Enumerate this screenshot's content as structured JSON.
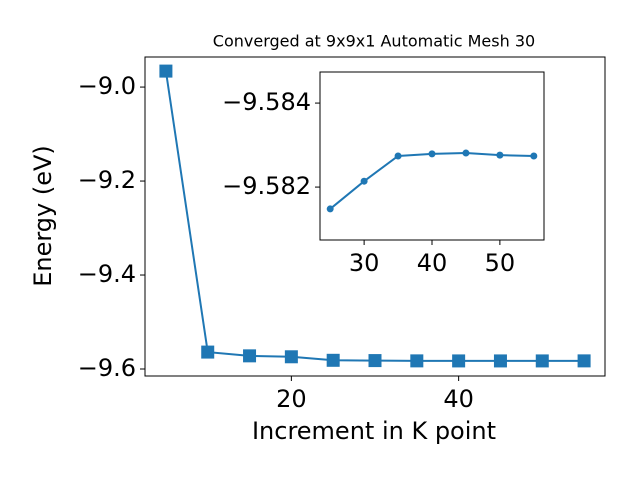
{
  "chart_data": [
    {
      "type": "line",
      "title": "Converged at 9x9x1 Automatic Mesh 30",
      "x_label": "Increment in K point",
      "y_label": "Energy (eV)",
      "x": [
        5,
        10,
        15,
        20,
        25,
        30,
        35,
        40,
        45,
        50,
        55
      ],
      "series": [
        {
          "name": "Energy",
          "color": "#1f77b4",
          "marker": "square",
          "values": [
            -8.966,
            -9.564,
            -9.572,
            -9.574,
            -9.5815,
            -9.5821,
            -9.5827,
            -9.5828,
            -9.5828,
            -9.5828,
            -9.5827
          ]
        }
      ],
      "xlim": [
        2.5,
        57.5
      ],
      "xticks": [
        20,
        40
      ],
      "ylim": [
        -9.6149,
        -8.936
      ],
      "yticks": [
        {
          "value": -9.6,
          "label": "−9.6"
        },
        {
          "value": -9.4,
          "label": "−9.4"
        },
        {
          "value": -9.2,
          "label": "−9.2"
        },
        {
          "value": -9.0,
          "label": "−9.0"
        }
      ]
    },
    {
      "type": "line",
      "x": [
        25,
        30,
        35,
        40,
        45,
        50,
        55
      ],
      "series": [
        {
          "name": "Energy",
          "color": "#1f77b4",
          "marker": "circle",
          "values": [
            -9.58148,
            -9.58214,
            -9.58274,
            -9.58279,
            -9.58281,
            -9.58276,
            -9.58274
          ]
        }
      ],
      "xlim": [
        23.5,
        56.5
      ],
      "xticks": [
        30,
        40,
        50
      ],
      "ylim": [
        -9.58074,
        -9.58474
      ],
      "yticks": [
        {
          "value": -9.582,
          "label": "−9.582"
        },
        {
          "value": -9.584,
          "label": "−9.584"
        }
      ]
    }
  ]
}
